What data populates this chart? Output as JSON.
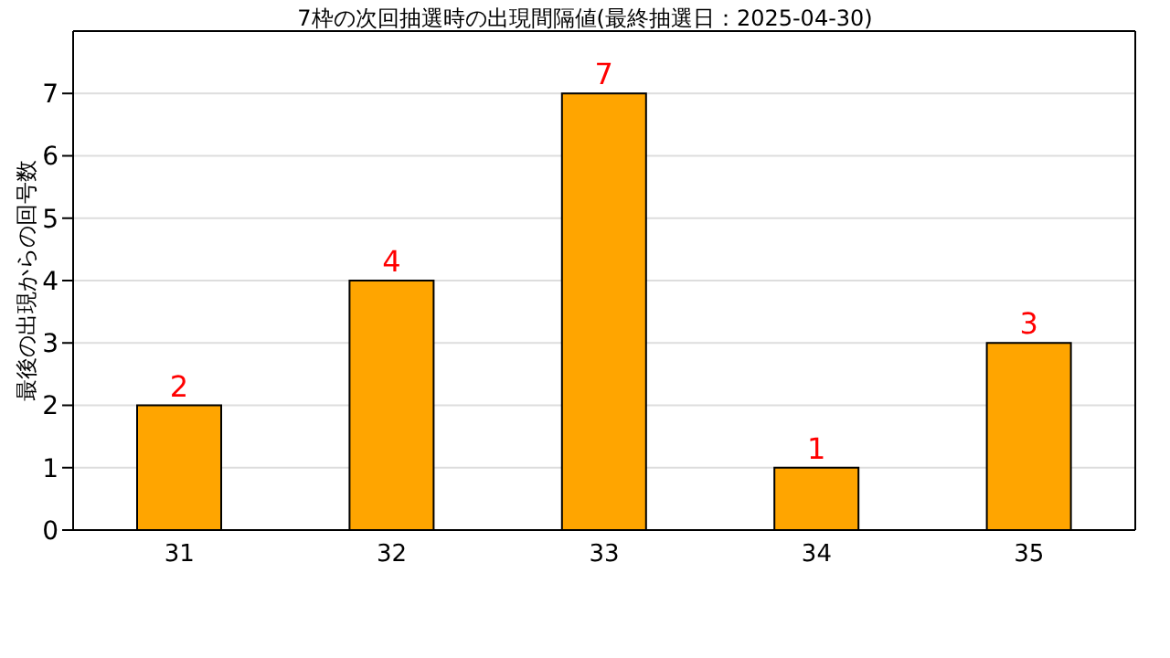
{
  "chart_data": {
    "type": "bar",
    "title": "7枠の次回抽選時の出現間隔値(最終抽選日：2025-04-30)",
    "ylabel": "最後の出現からの回号数",
    "categories": [
      "31",
      "32",
      "33",
      "34",
      "35"
    ],
    "values": [
      2,
      4,
      7,
      1,
      3
    ],
    "color": "#ffa500",
    "data_labels": true,
    "ylim": [
      0,
      8
    ],
    "yticks": [
      0,
      1,
      2,
      3,
      4,
      5,
      6,
      7
    ],
    "grid": "y"
  }
}
